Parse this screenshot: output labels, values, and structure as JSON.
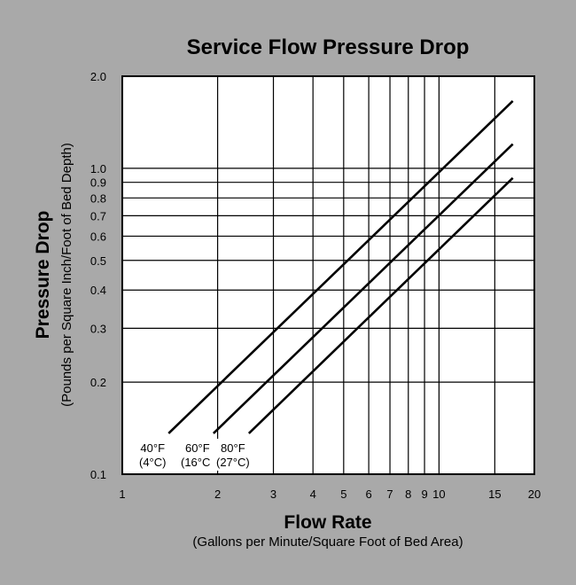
{
  "chart_data": {
    "type": "line",
    "title": "Service Flow Pressure Drop",
    "xlabel": "Flow Rate",
    "xlabel_sub": "(Gallons per Minute/Square Foot of Bed Area)",
    "ylabel": "Pressure Drop",
    "ylabel_sub": "(Pounds per Square Inch/Foot of Bed Depth)",
    "x_scale": "log",
    "y_scale": "log",
    "xlim": [
      1,
      20
    ],
    "ylim": [
      0.1,
      2.0
    ],
    "grid": true,
    "x_ticks": [
      1,
      2,
      3,
      4,
      5,
      6,
      7,
      8,
      9,
      10,
      15,
      20
    ],
    "x_tick_labels": [
      "1",
      "2",
      "3",
      "4",
      "5",
      "6",
      "7",
      "8",
      "9",
      "10",
      "15",
      "20"
    ],
    "y_ticks": [
      0.1,
      0.2,
      0.3,
      0.4,
      0.5,
      0.6,
      0.7,
      0.8,
      0.9,
      1.0,
      2.0
    ],
    "y_tick_labels": [
      "0.1",
      "0.2",
      "0.3",
      "0.4",
      "0.5",
      "0.6",
      "0.7",
      "0.8",
      "0.9",
      "1.0",
      "2.0"
    ],
    "series": [
      {
        "name": "40°F",
        "name_sub": "(4°C)",
        "x": [
          1.4,
          17.1
        ],
        "y": [
          0.136,
          1.66
        ]
      },
      {
        "name": "60°F",
        "name_sub": "(16°C)",
        "x": [
          1.94,
          17.1
        ],
        "y": [
          0.136,
          1.2
        ]
      },
      {
        "name": "80°F",
        "name_sub": "(27°C)",
        "x": [
          2.51,
          17.1
        ],
        "y": [
          0.136,
          0.93
        ]
      }
    ],
    "colors": {
      "background": "#a9a9a9",
      "plot": "#ffffff",
      "line": "#000000"
    }
  }
}
